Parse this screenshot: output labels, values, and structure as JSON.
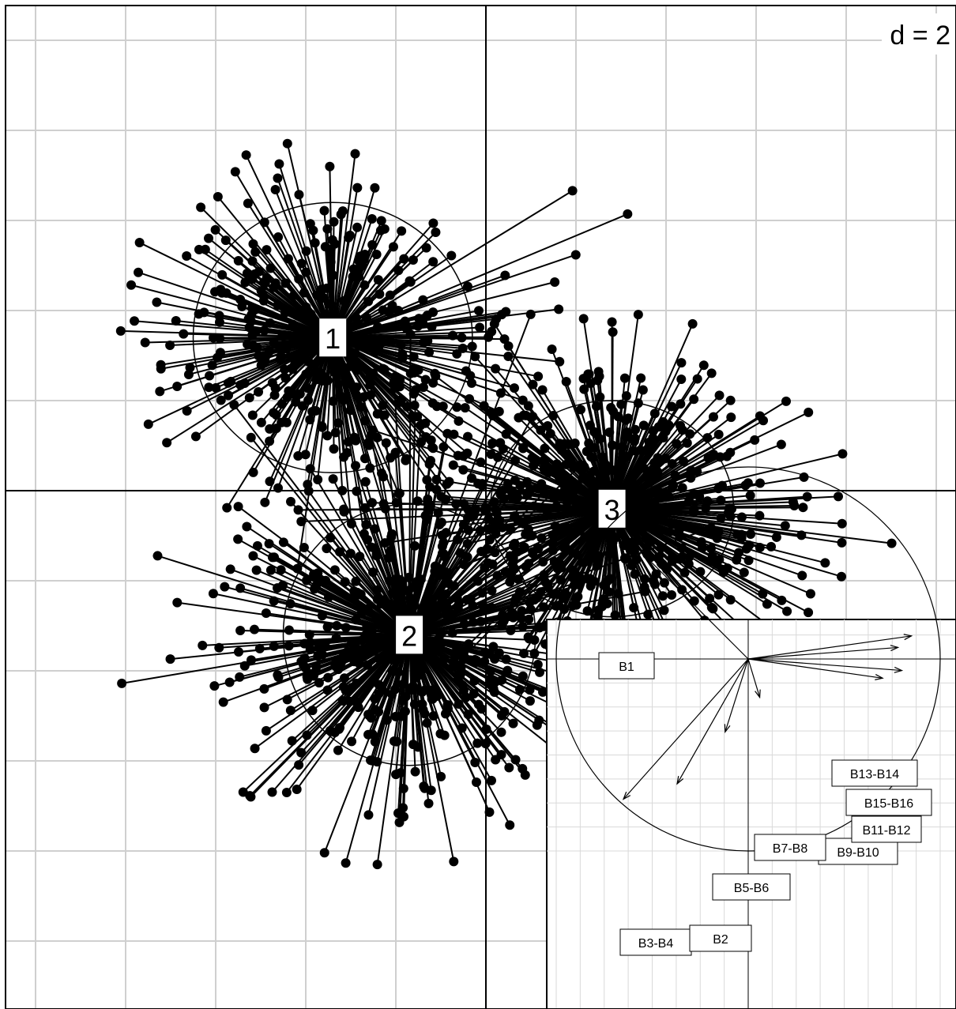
{
  "chart_data": [
    {
      "type": "scatter",
      "scale_label": "d = 2",
      "grid": true,
      "xlim": [
        -10.6,
        10.6
      ],
      "ylim": [
        -11.1,
        10.7
      ],
      "grid_step": 2,
      "groups": [
        {
          "label": "1",
          "center": [
            -3.4,
            3.4
          ],
          "ellipse_radii": [
            3.1,
            3.0
          ],
          "spread": [
            3.2,
            2.9
          ],
          "n": 420,
          "seed": 11
        },
        {
          "label": "2",
          "center": [
            -1.7,
            -3.2
          ],
          "ellipse_radii": [
            2.8,
            2.9
          ],
          "spread": [
            3.3,
            3.2
          ],
          "n": 520,
          "seed": 29
        },
        {
          "label": "3",
          "center": [
            2.8,
            -0.4
          ],
          "ellipse_radii": [
            2.7,
            2.4
          ],
          "spread": [
            3.3,
            2.6
          ],
          "n": 560,
          "seed": 47
        }
      ],
      "colors": {
        "points": "#000000",
        "grid": "#cfcfcf",
        "axes": "#000000"
      }
    },
    {
      "type": "correlation-circle",
      "grid": true,
      "xlim": [
        -1,
        1
      ],
      "ylim": [
        -1,
        1
      ],
      "vectors": [
        {
          "label": "B1",
          "x": -0.58,
          "y": 0.58
        },
        {
          "label": "B2",
          "x": -0.37,
          "y": -0.65
        },
        {
          "label": "B3-B4",
          "x": -0.65,
          "y": -0.73
        },
        {
          "label": "B5-B6",
          "x": -0.12,
          "y": -0.38
        },
        {
          "label": "B7-B8",
          "x": 0.06,
          "y": -0.2
        },
        {
          "label": "B9-B10",
          "x": 0.7,
          "y": -0.1
        },
        {
          "label": "B11-B12",
          "x": 0.8,
          "y": -0.06
        },
        {
          "label": "B13-B14",
          "x": 0.85,
          "y": 0.12
        },
        {
          "label": "B15-B16",
          "x": 0.78,
          "y": 0.06
        }
      ]
    }
  ]
}
